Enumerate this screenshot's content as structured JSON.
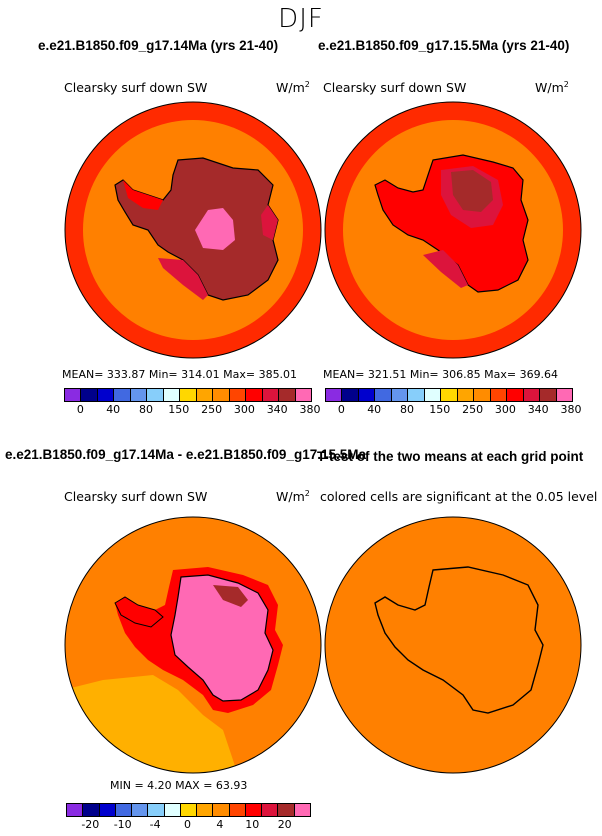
{
  "season": "DJF",
  "panels": {
    "top_left": {
      "case": "e.e21.B1850.f09_g17.14Ma (yrs 21-40)",
      "variable": "Clearsky surf down SW",
      "units": "W/m",
      "units_sup": "2",
      "stats": "MEAN= 333.87   Min= 314.01   Max= 385.01"
    },
    "top_right": {
      "case": "e.e21.B1850.f09_g17.15.5Ma (yrs 21-40)",
      "variable": "Clearsky surf down SW",
      "units": "W/m",
      "units_sup": "2",
      "stats": "MEAN= 321.51   Min= 306.85   Max= 369.64"
    },
    "bottom_left": {
      "case": "e.e21.B1850.f09_g17.14Ma - e.e21.B1850.f09_g17.15.5Ma",
      "variable": "Clearsky surf down SW",
      "units": "W/m",
      "units_sup": "2",
      "stats": "MIN =    4.20 MAX =   63.93"
    },
    "bottom_right": {
      "case": "T-test of the two means at each grid point",
      "note": "colored cells are significant at the 0.05 level"
    }
  },
  "colorbar_abs": {
    "colors": [
      "#8a2be2",
      "#00008b",
      "#0000cd",
      "#4169e1",
      "#6495ed",
      "#87cefa",
      "#e0ffff",
      "#ffd700",
      "#ffa500",
      "#ff8c00",
      "#ff4500",
      "#ff0000",
      "#dc143c",
      "#a52a2a",
      "#ff69b4"
    ],
    "labels": [
      "0",
      "40",
      "80",
      "150",
      "250",
      "300",
      "340",
      "380"
    ]
  },
  "colorbar_diff": {
    "colors": [
      "#8a2be2",
      "#00008b",
      "#0000cd",
      "#4169e1",
      "#6495ed",
      "#87cefa",
      "#e0ffff",
      "#ffd700",
      "#ffa500",
      "#ff8c00",
      "#ff4500",
      "#ff0000",
      "#dc143c",
      "#a52a2a",
      "#ff69b4"
    ],
    "labels": [
      "-20",
      "-10",
      "-4",
      "0",
      "4",
      "10",
      "20"
    ]
  },
  "map_colors": {
    "outer_ring": "#ff2a00",
    "ocean_mid": "#ff8000",
    "land_high": "#a52a2a",
    "land_peak": "#ff69b4",
    "crimson": "#dc143c",
    "yellow": "#ffb000",
    "red": "#ff0000",
    "outline": "#000000"
  }
}
